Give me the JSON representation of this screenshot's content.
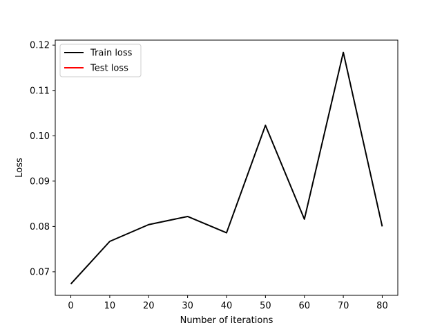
{
  "chart_data": {
    "type": "line",
    "title": "",
    "xlabel": "Number of iterations",
    "ylabel": "Loss",
    "xlim": [
      -4,
      84
    ],
    "ylim": [
      0.0648,
      0.1211
    ],
    "xticks": [
      0,
      10,
      20,
      30,
      40,
      50,
      60,
      70,
      80
    ],
    "xtick_labels": [
      "0",
      "10",
      "20",
      "30",
      "40",
      "50",
      "60",
      "70",
      "80"
    ],
    "yticks": [
      0.07,
      0.08,
      0.09,
      0.1,
      0.11,
      0.12
    ],
    "ytick_labels": [
      "0.07",
      "0.08",
      "0.09",
      "0.10",
      "0.11",
      "0.12"
    ],
    "grid": false,
    "legend_position": "top-left",
    "series": [
      {
        "name": "Train loss",
        "color": "#000000",
        "x": [
          0,
          10,
          20,
          30,
          40,
          50,
          60,
          70,
          80
        ],
        "y": [
          0.0673,
          0.0767,
          0.0804,
          0.0822,
          0.0786,
          0.1023,
          0.0816,
          0.1184,
          0.08
        ]
      },
      {
        "name": "Test loss",
        "color": "#ff0000",
        "x": [],
        "y": []
      }
    ]
  }
}
